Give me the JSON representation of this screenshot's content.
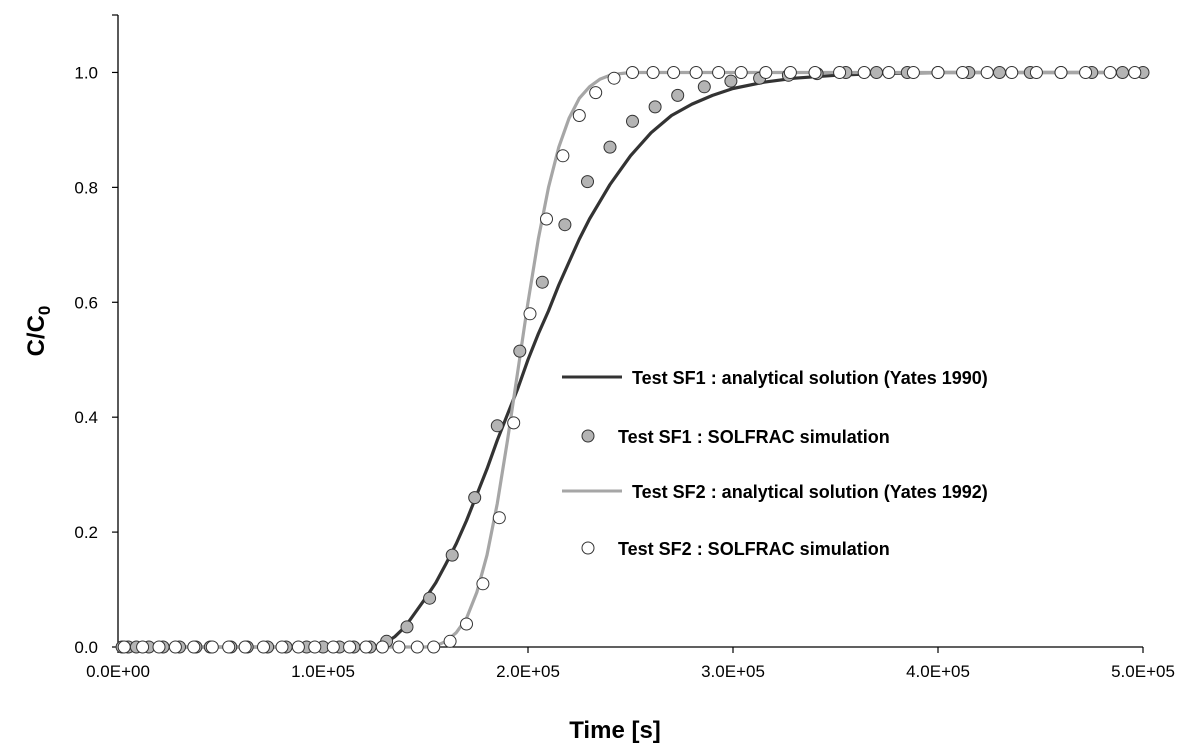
{
  "chart_data": {
    "type": "line",
    "xlabel": "Time [s]",
    "ylabel": "C/C",
    "ylabel_subscript": "0",
    "xlim": [
      0,
      500000
    ],
    "ylim": [
      0,
      1.1
    ],
    "x_tick_labels": [
      "0.0E+00",
      "1.0E+05",
      "2.0E+05",
      "3.0E+05",
      "4.0E+05",
      "5.0E+05"
    ],
    "y_tick_labels": [
      "0.0",
      "0.2",
      "0.4",
      "0.6",
      "0.8",
      "1.0"
    ],
    "grid": false,
    "legend_position": "center-right",
    "series": [
      {
        "name": "Test SF1 : analytical solution (Yates 1990)",
        "kind": "line",
        "color": "#333333",
        "x": [
          125000,
          130000,
          135000,
          140000,
          145000,
          150000,
          155000,
          160000,
          165000,
          170000,
          175000,
          180000,
          185000,
          190000,
          195000,
          200000,
          205000,
          210000,
          215000,
          220000,
          225000,
          230000,
          235000,
          240000,
          245000,
          250000,
          260000,
          270000,
          280000,
          290000,
          300000,
          315000,
          330000,
          350000,
          370000,
          400000,
          450000,
          500000
        ],
        "y": [
          0.0,
          0.006,
          0.018,
          0.035,
          0.06,
          0.085,
          0.112,
          0.145,
          0.18,
          0.22,
          0.265,
          0.31,
          0.36,
          0.405,
          0.45,
          0.5,
          0.545,
          0.585,
          0.63,
          0.67,
          0.71,
          0.745,
          0.775,
          0.805,
          0.83,
          0.855,
          0.895,
          0.925,
          0.945,
          0.96,
          0.972,
          0.983,
          0.99,
          0.995,
          0.998,
          1.0,
          1.0,
          1.0
        ]
      },
      {
        "name": "Test SF1 : SOLFRAC simulation",
        "kind": "scatter",
        "fill": "#b4b4b4",
        "x": [
          2000,
          5000,
          9000,
          15000,
          22000,
          30000,
          38000,
          45000,
          55000,
          63000,
          73000,
          82000,
          92000,
          100000,
          108000,
          115000,
          123000,
          131000,
          141000,
          152000,
          163000,
          174000,
          185000,
          196000,
          207000,
          218000,
          229000,
          240000,
          251000,
          262000,
          273000,
          286000,
          299000,
          313000,
          327000,
          341000,
          355000,
          370000,
          385000,
          400000,
          415000,
          430000,
          445000,
          460000,
          475000,
          490000,
          500000
        ],
        "y": [
          0.0,
          0.0,
          0.0,
          0.0,
          0.0,
          0.0,
          0.0,
          0.0,
          0.0,
          0.0,
          0.0,
          0.0,
          0.0,
          0.0,
          0.0,
          0.0,
          0.0,
          0.01,
          0.035,
          0.085,
          0.16,
          0.26,
          0.385,
          0.515,
          0.635,
          0.735,
          0.81,
          0.87,
          0.915,
          0.94,
          0.96,
          0.975,
          0.985,
          0.99,
          0.995,
          0.998,
          1.0,
          1.0,
          1.0,
          1.0,
          1.0,
          1.0,
          1.0,
          1.0,
          1.0,
          1.0,
          1.0
        ]
      },
      {
        "name": "Test SF2 : analytical solution (Yates 1992)",
        "kind": "line",
        "color": "#a6a6a6",
        "x": [
          150000,
          155000,
          160000,
          165000,
          170000,
          175000,
          180000,
          185000,
          190000,
          195000,
          200000,
          205000,
          210000,
          215000,
          220000,
          225000,
          230000,
          235000,
          240000,
          245000,
          250000,
          260000,
          280000,
          300000,
          350000,
          400000,
          450000,
          500000
        ],
        "y": [
          0.0,
          0.002,
          0.01,
          0.025,
          0.05,
          0.095,
          0.16,
          0.25,
          0.36,
          0.48,
          0.6,
          0.71,
          0.8,
          0.87,
          0.92,
          0.955,
          0.975,
          0.988,
          0.995,
          0.998,
          1.0,
          1.0,
          1.0,
          1.0,
          1.0,
          1.0,
          1.0,
          1.0
        ]
      },
      {
        "name": "Test SF2 : SOLFRAC simulation",
        "kind": "scatter",
        "fill": "#ffffff",
        "x": [
          3000,
          12000,
          20000,
          28000,
          37000,
          46000,
          54000,
          62000,
          71000,
          80000,
          88000,
          96000,
          105000,
          113000,
          121000,
          129000,
          137000,
          146000,
          154000,
          162000,
          170000,
          178000,
          186000,
          193000,
          201000,
          209000,
          217000,
          225000,
          233000,
          242000,
          251000,
          261000,
          271000,
          282000,
          293000,
          304000,
          316000,
          328000,
          340000,
          352000,
          364000,
          376000,
          388000,
          400000,
          412000,
          424000,
          436000,
          448000,
          460000,
          472000,
          484000,
          496000
        ],
        "y": [
          0.0,
          0.0,
          0.0,
          0.0,
          0.0,
          0.0,
          0.0,
          0.0,
          0.0,
          0.0,
          0.0,
          0.0,
          0.0,
          0.0,
          0.0,
          0.0,
          0.0,
          0.0,
          0.0,
          0.01,
          0.04,
          0.11,
          0.225,
          0.39,
          0.58,
          0.745,
          0.855,
          0.925,
          0.965,
          0.99,
          1.0,
          1.0,
          1.0,
          1.0,
          1.0,
          1.0,
          1.0,
          1.0,
          1.0,
          1.0,
          1.0,
          1.0,
          1.0,
          1.0,
          1.0,
          1.0,
          1.0,
          1.0,
          1.0,
          1.0,
          1.0,
          1.0
        ]
      }
    ]
  }
}
